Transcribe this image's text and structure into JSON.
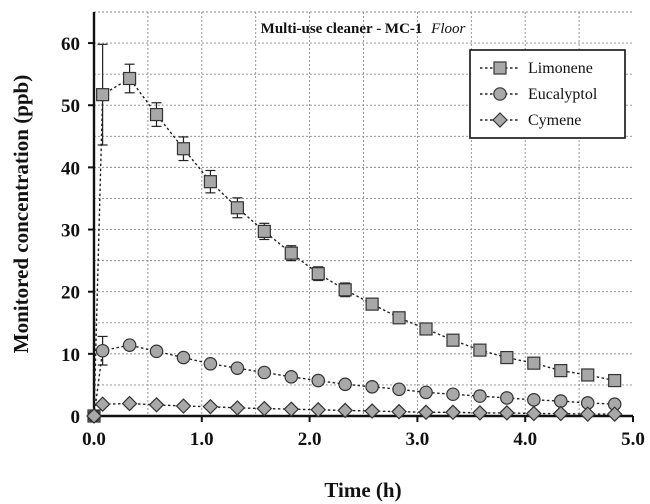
{
  "chart_data": {
    "type": "line",
    "title": "Multi-use cleaner - MC-1",
    "title_italic": "Floor",
    "xlabel": "Time (h)",
    "ylabel": "Monitored concentration (ppb)",
    "xlim": [
      0,
      5.0
    ],
    "ylim": [
      0,
      65
    ],
    "xticks": [
      0.0,
      1.0,
      2.0,
      3.0,
      4.0,
      5.0
    ],
    "xtick_labels": [
      "0.0",
      "1.0",
      "2.0",
      "3.0",
      "4.0",
      "5.0"
    ],
    "yticks": [
      0,
      10,
      20,
      30,
      40,
      50,
      60
    ],
    "ytick_labels": [
      "0",
      "10",
      "20",
      "30",
      "40",
      "50",
      "60"
    ],
    "grid": true,
    "legend_position": "top-right",
    "series": [
      {
        "name": "Limonene",
        "marker": "square",
        "x": [
          0.0,
          0.08,
          0.33,
          0.58,
          0.83,
          1.08,
          1.33,
          1.58,
          1.83,
          2.08,
          2.33,
          2.58,
          2.83,
          3.08,
          3.33,
          3.58,
          3.83,
          4.08,
          4.33,
          4.58,
          4.83
        ],
        "y": [
          0.0,
          51.7,
          54.3,
          48.5,
          43.0,
          37.7,
          33.5,
          29.7,
          26.2,
          22.9,
          20.3,
          18.0,
          15.8,
          14.0,
          12.2,
          10.6,
          9.4,
          8.5,
          7.3,
          6.6,
          5.7
        ],
        "err": [
          0,
          8.1,
          2.3,
          1.9,
          1.9,
          1.8,
          1.6,
          1.3,
          1.2,
          1.1,
          1.1,
          0,
          0,
          0,
          0,
          0,
          0,
          0,
          0,
          0,
          0
        ]
      },
      {
        "name": "Eucalyptol",
        "marker": "circle",
        "x": [
          0.0,
          0.08,
          0.33,
          0.58,
          0.83,
          1.08,
          1.33,
          1.58,
          1.83,
          2.08,
          2.33,
          2.58,
          2.83,
          3.08,
          3.33,
          3.58,
          3.83,
          4.08,
          4.33,
          4.58,
          4.83
        ],
        "y": [
          0.0,
          10.5,
          11.4,
          10.4,
          9.4,
          8.4,
          7.7,
          7.0,
          6.3,
          5.7,
          5.1,
          4.7,
          4.3,
          3.8,
          3.5,
          3.2,
          2.9,
          2.6,
          2.4,
          2.1,
          1.9
        ],
        "err": [
          0,
          2.3,
          0,
          0,
          0,
          0,
          0,
          0,
          0,
          0,
          0,
          0,
          0,
          0,
          0,
          0,
          0,
          0,
          0,
          0,
          0
        ]
      },
      {
        "name": "Cymene",
        "marker": "diamond",
        "x": [
          0.0,
          0.08,
          0.33,
          0.58,
          0.83,
          1.08,
          1.33,
          1.58,
          1.83,
          2.08,
          2.33,
          2.58,
          2.83,
          3.08,
          3.33,
          3.58,
          3.83,
          4.08,
          4.33,
          4.58,
          4.83
        ],
        "y": [
          0.0,
          1.9,
          2.0,
          1.8,
          1.6,
          1.5,
          1.3,
          1.2,
          1.1,
          1.0,
          0.9,
          0.8,
          0.7,
          0.6,
          0.6,
          0.5,
          0.5,
          0.4,
          0.4,
          0.3,
          0.3
        ],
        "err": [
          0,
          0,
          0,
          0,
          0,
          0,
          0,
          0,
          0,
          0,
          0,
          0,
          0,
          0,
          0,
          0,
          0,
          0,
          0,
          0,
          0
        ]
      }
    ]
  }
}
